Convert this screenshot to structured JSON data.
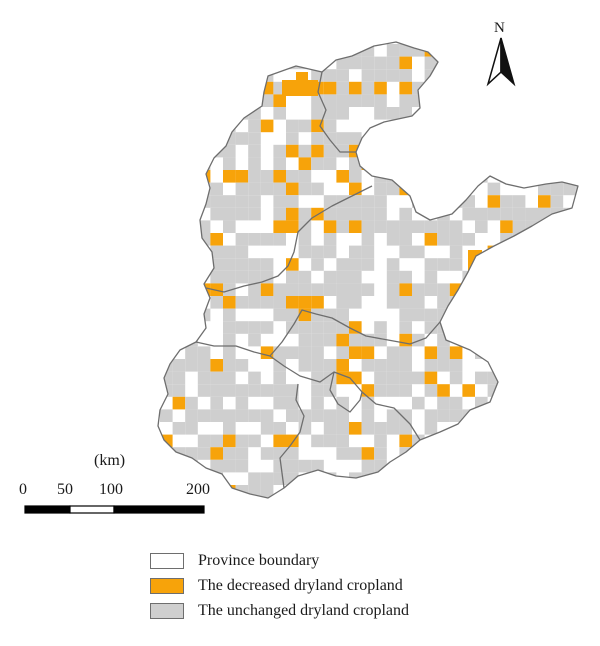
{
  "compass": {
    "label": "N",
    "icon": "north-arrow-icon"
  },
  "scale": {
    "unit": "(km)",
    "ticks": [
      "0",
      "50",
      "100",
      "200"
    ],
    "tick_values_km": [
      0,
      50,
      100,
      200
    ]
  },
  "legend": [
    {
      "label": "Province boundary",
      "color": "#ffffff"
    },
    {
      "label": "The decreased dryland cropland",
      "color": "#f7a30a"
    },
    {
      "label": "The unchanged dryland cropland",
      "color": "#cfcfcf"
    }
  ],
  "colors": {
    "decreased": "#f7a30a",
    "unchanged": "#cfcfcf",
    "boundary": "#6e6e6e",
    "background": "#ffffff"
  }
}
